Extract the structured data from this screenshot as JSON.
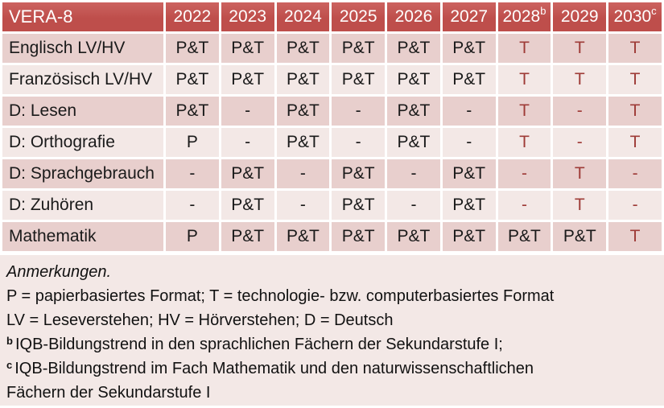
{
  "colors": {
    "header_bg": "#BE4E4B",
    "header_top": "#CC6360",
    "header_text": "#FFFFFF",
    "band_dark": "#E8CFCD",
    "band_light": "#F3E8E6",
    "cell_text": "#1A1A1A",
    "accent_text": "#9E3B37"
  },
  "table": {
    "corner_label": "VERA-8",
    "columns": [
      {
        "year": "2022",
        "sup": ""
      },
      {
        "year": "2023",
        "sup": ""
      },
      {
        "year": "2024",
        "sup": ""
      },
      {
        "year": "2025",
        "sup": ""
      },
      {
        "year": "2026",
        "sup": ""
      },
      {
        "year": "2027",
        "sup": ""
      },
      {
        "year": "2028",
        "sup": "b"
      },
      {
        "year": "2029",
        "sup": ""
      },
      {
        "year": "2030",
        "sup": "c"
      }
    ],
    "rows": [
      {
        "label": "Englisch LV/HV",
        "cells": [
          {
            "text": "P&T",
            "accent": false
          },
          {
            "text": "P&T",
            "accent": false
          },
          {
            "text": "P&T",
            "accent": false
          },
          {
            "text": "P&T",
            "accent": false
          },
          {
            "text": "P&T",
            "accent": false
          },
          {
            "text": "P&T",
            "accent": false
          },
          {
            "text": "T",
            "accent": true
          },
          {
            "text": "T",
            "accent": true
          },
          {
            "text": "T",
            "accent": true
          }
        ]
      },
      {
        "label": "Französisch LV/HV",
        "cells": [
          {
            "text": "P&T",
            "accent": false
          },
          {
            "text": "P&T",
            "accent": false
          },
          {
            "text": "P&T",
            "accent": false
          },
          {
            "text": "P&T",
            "accent": false
          },
          {
            "text": "P&T",
            "accent": false
          },
          {
            "text": "P&T",
            "accent": false
          },
          {
            "text": "T",
            "accent": true
          },
          {
            "text": "T",
            "accent": true
          },
          {
            "text": "T",
            "accent": true
          }
        ]
      },
      {
        "label": "D: Lesen",
        "cells": [
          {
            "text": "P&T",
            "accent": false
          },
          {
            "text": "-",
            "accent": false
          },
          {
            "text": "P&T",
            "accent": false
          },
          {
            "text": "-",
            "accent": false
          },
          {
            "text": "P&T",
            "accent": false
          },
          {
            "text": "-",
            "accent": false
          },
          {
            "text": "T",
            "accent": true
          },
          {
            "text": "-",
            "accent": true
          },
          {
            "text": "T",
            "accent": true
          }
        ]
      },
      {
        "label": "D: Orthografie",
        "cells": [
          {
            "text": "P",
            "accent": false
          },
          {
            "text": "-",
            "accent": false
          },
          {
            "text": "P&T",
            "accent": false
          },
          {
            "text": "-",
            "accent": false
          },
          {
            "text": "P&T",
            "accent": false
          },
          {
            "text": "-",
            "accent": false
          },
          {
            "text": "T",
            "accent": true
          },
          {
            "text": "-",
            "accent": true
          },
          {
            "text": "T",
            "accent": true
          }
        ]
      },
      {
        "label": "D: Sprachgebrauch",
        "cells": [
          {
            "text": "-",
            "accent": false
          },
          {
            "text": "P&T",
            "accent": false
          },
          {
            "text": "-",
            "accent": false
          },
          {
            "text": "P&T",
            "accent": false
          },
          {
            "text": "-",
            "accent": false
          },
          {
            "text": "P&T",
            "accent": false
          },
          {
            "text": "-",
            "accent": true
          },
          {
            "text": "T",
            "accent": true
          },
          {
            "text": "-",
            "accent": true
          }
        ]
      },
      {
        "label": "D: Zuhören",
        "cells": [
          {
            "text": "-",
            "accent": false
          },
          {
            "text": "P&T",
            "accent": false
          },
          {
            "text": "-",
            "accent": false
          },
          {
            "text": "P&T",
            "accent": false
          },
          {
            "text": "-",
            "accent": false
          },
          {
            "text": "P&T",
            "accent": false
          },
          {
            "text": "-",
            "accent": true
          },
          {
            "text": "T",
            "accent": true
          },
          {
            "text": "-",
            "accent": true
          }
        ]
      },
      {
        "label": "Mathematik",
        "cells": [
          {
            "text": "P",
            "accent": false
          },
          {
            "text": "P&T",
            "accent": false
          },
          {
            "text": "P&T",
            "accent": false
          },
          {
            "text": "P&T",
            "accent": false
          },
          {
            "text": "P&T",
            "accent": false
          },
          {
            "text": "P&T",
            "accent": false
          },
          {
            "text": "P&T",
            "accent": false
          },
          {
            "text": "P&T",
            "accent": false
          },
          {
            "text": "T",
            "accent": true
          }
        ]
      }
    ]
  },
  "notes": {
    "title": "Anmerkungen.",
    "lines": [
      {
        "sup": "",
        "text": "P = papierbasiertes Format; T = technologie- bzw. computerbasiertes Format"
      },
      {
        "sup": "",
        "text": "LV = Leseverstehen; HV = Hörverstehen; D = Deutsch"
      },
      {
        "sup": "b",
        "text": "IQB-Bildungstrend in den sprachlichen Fächern der Sekundarstufe I;"
      },
      {
        "sup": "c",
        "text": "IQB-Bildungstrend im Fach Mathematik und den naturwissenschaftlichen"
      },
      {
        "sup": "",
        "text": "Fächern der Sekundarstufe I"
      }
    ]
  }
}
